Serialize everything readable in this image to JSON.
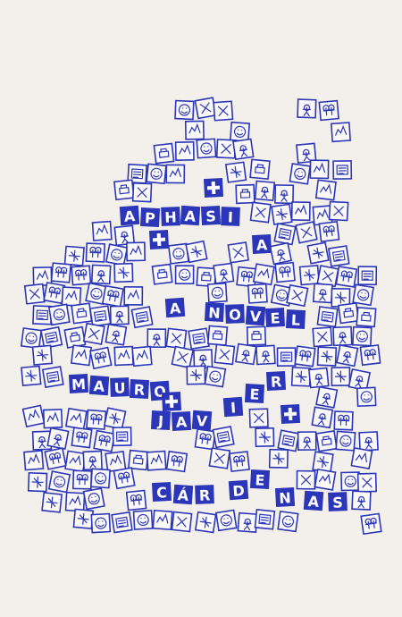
{
  "cover": {
    "title_tiles": [
      "A",
      "P",
      "H",
      "A",
      "S",
      "I",
      "A"
    ],
    "subtitle_tiles": [
      "A",
      "N",
      "O",
      "V",
      "E",
      "L"
    ],
    "author_tiles": [
      "M",
      "A",
      "U",
      "R",
      "O",
      "J",
      "A",
      "V",
      "I",
      "E",
      "R",
      "C",
      "Á",
      "R",
      "D",
      "E",
      "N",
      "A",
      "S"
    ]
  }
}
